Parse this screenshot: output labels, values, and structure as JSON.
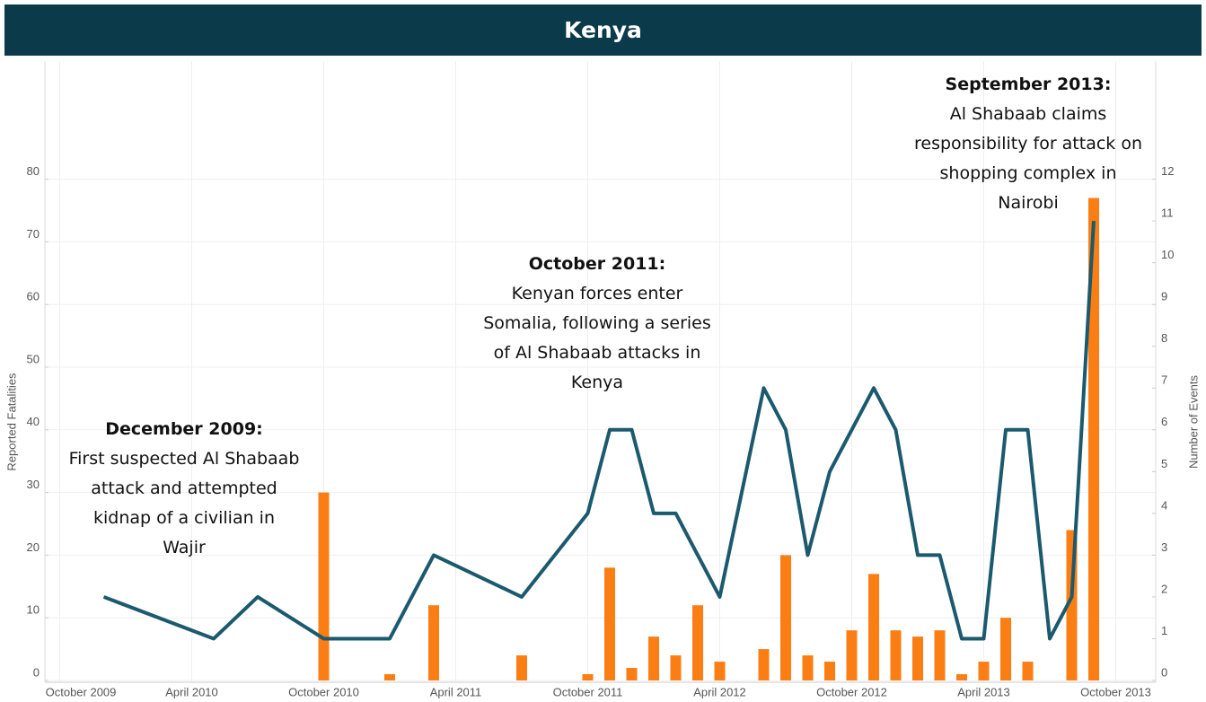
{
  "chart_data": {
    "type": "bar-line",
    "title": "Kenya",
    "ylabel": "Reported Fatalities",
    "y2label": "Number of Events",
    "xlim": [
      "2009-09",
      "2013-11"
    ],
    "xticks": [
      {
        "value": "2009-10",
        "label": "October 2009"
      },
      {
        "value": "2010-04",
        "label": "April 2010"
      },
      {
        "value": "2010-10",
        "label": "October 2010"
      },
      {
        "value": "2011-04",
        "label": "April 2011"
      },
      {
        "value": "2011-10",
        "label": "October 2011"
      },
      {
        "value": "2012-04",
        "label": "April 2012"
      },
      {
        "value": "2012-10",
        "label": "October 2012"
      },
      {
        "value": "2013-04",
        "label": "April 2013"
      },
      {
        "value": "2013-10",
        "label": "October 2013"
      }
    ],
    "ylim": [
      0,
      100
    ],
    "yticks": [
      0,
      10,
      20,
      30,
      40,
      50,
      60,
      70,
      80
    ],
    "y2lim": [
      0,
      15
    ],
    "y2ticks": [
      0,
      1,
      2,
      3,
      4,
      5,
      6,
      7,
      8,
      9,
      10,
      11,
      12
    ],
    "grid": true,
    "series": [
      {
        "type": "bar",
        "color": "#fb7e15",
        "x": [
          "2010-10",
          "2011-01",
          "2011-03",
          "2011-07",
          "2011-10",
          "2011-11",
          "2011-12",
          "2012-01",
          "2012-02",
          "2012-03",
          "2012-04",
          "2012-06",
          "2012-07",
          "2012-08",
          "2012-09",
          "2012-10",
          "2012-11",
          "2012-12",
          "2013-01",
          "2013-02",
          "2013-03",
          "2013-04",
          "2013-05",
          "2013-06",
          "2013-08",
          "2013-09"
        ],
        "values": [
          30,
          1,
          12,
          4,
          1,
          18,
          2,
          7,
          4,
          12,
          3,
          5,
          20,
          4,
          3,
          8,
          17,
          8,
          7,
          8,
          1,
          3,
          10,
          3,
          24,
          77
        ]
      },
      {
        "type": "line",
        "axis": "y2",
        "color": "#1b5a6e",
        "x": [
          "2009-12",
          "2010-05",
          "2010-07",
          "2010-10",
          "2011-01",
          "2011-03",
          "2011-07",
          "2011-10",
          "2011-11",
          "2011-12",
          "2012-01",
          "2012-02",
          "2012-04",
          "2012-06",
          "2012-07",
          "2012-08",
          "2012-09",
          "2012-11",
          "2012-12",
          "2013-01",
          "2013-02",
          "2013-03",
          "2013-04",
          "2013-05",
          "2013-06",
          "2013-07",
          "2013-08",
          "2013-09"
        ],
        "values": [
          2,
          1,
          2,
          1,
          1,
          3,
          2,
          4,
          6,
          6,
          4,
          4,
          2,
          7,
          6,
          3,
          5,
          7,
          6,
          3,
          3,
          1,
          1,
          6,
          6,
          1,
          2,
          11
        ]
      }
    ],
    "annotations": [
      {
        "title": "December 2009:",
        "lines": [
          "First suspected Al Shabaab",
          "attack and attempted",
          "kidnap of a civilian in",
          "Wajir"
        ]
      },
      {
        "title": "October 2011:",
        "lines": [
          "Kenyan forces enter",
          "Somalia, following a series",
          "of Al Shabaab attacks in",
          "Kenya"
        ]
      },
      {
        "title": "September 2013:",
        "lines": [
          "Al Shabaab claims",
          "responsibility for attack on",
          "shopping complex in",
          "Nairobi"
        ]
      }
    ]
  }
}
